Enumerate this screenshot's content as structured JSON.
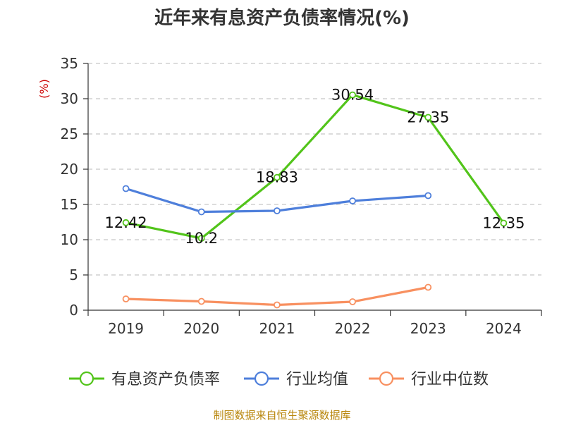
{
  "chart_data": {
    "type": "line",
    "title": "近年来有息资产负债率情况(%)",
    "ylabel": "(%)",
    "categories": [
      "2019",
      "2020",
      "2021",
      "2022",
      "2023",
      "2024"
    ],
    "ylim": [
      0,
      35
    ],
    "yticks": [
      0,
      5,
      10,
      15,
      20,
      25,
      30,
      35
    ],
    "grid": true,
    "legend_position": "bottom",
    "series": [
      {
        "name": "有息资产负债率",
        "color": "#52c41a",
        "values": [
          12.42,
          10.2,
          18.83,
          30.54,
          27.35,
          12.35
        ],
        "labels": [
          "12.42",
          "10.2",
          "18.83",
          "30.54",
          "27.35",
          "12.35"
        ]
      },
      {
        "name": "行业均值",
        "color": "#4e7fdb",
        "values": [
          17.25,
          13.95,
          14.1,
          15.5,
          16.25,
          null
        ]
      },
      {
        "name": "行业中位数",
        "color": "#f89060",
        "values": [
          1.6,
          1.25,
          0.75,
          1.2,
          3.25,
          null
        ]
      }
    ]
  },
  "source_text": "制图数据来自恒生聚源数据库"
}
